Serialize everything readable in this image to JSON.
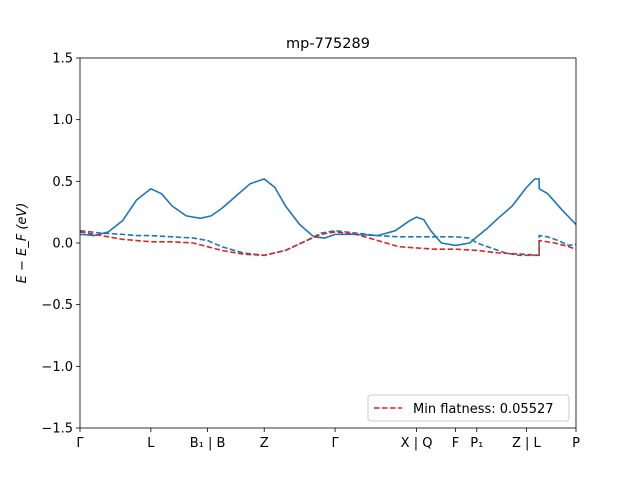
{
  "chart_data": {
    "type": "line",
    "title": "mp-775289",
    "ylabel": "E − E_F (eV)",
    "ylim": [
      -1.5,
      1.5
    ],
    "yticks": [
      1.5,
      1.0,
      0.5,
      0.0,
      -0.5,
      -1.0,
      -1.5
    ],
    "ytick_labels": [
      "1.5",
      "1.0",
      "0.5",
      "0.0",
      "−0.5",
      "−1.0",
      "−1.5"
    ],
    "xlim": [
      0,
      7.0
    ],
    "xticks": [
      {
        "x": 0.0,
        "label": "Γ"
      },
      {
        "x": 1.0,
        "label": "L"
      },
      {
        "x": 1.8,
        "label": "B₁ | B"
      },
      {
        "x": 2.6,
        "label": "Z"
      },
      {
        "x": 3.6,
        "label": "Γ"
      },
      {
        "x": 4.75,
        "label": "X | Q"
      },
      {
        "x": 5.3,
        "label": "F"
      },
      {
        "x": 5.6,
        "label": "P₁"
      },
      {
        "x": 6.3,
        "label": "Z | L"
      },
      {
        "x": 7.0,
        "label": "P"
      }
    ],
    "colors": {
      "band": "#1f77b4",
      "flat": "#d62728"
    },
    "series": [
      {
        "style": "solid",
        "color": "#1f77b4",
        "points": [
          [
            0,
            0.07
          ],
          [
            0.2,
            0.06
          ],
          [
            0.4,
            0.09
          ],
          [
            0.6,
            0.18
          ],
          [
            0.8,
            0.35
          ],
          [
            1.0,
            0.44
          ],
          [
            1.15,
            0.4
          ],
          [
            1.3,
            0.3
          ],
          [
            1.5,
            0.22
          ],
          [
            1.7,
            0.2
          ],
          [
            1.85,
            0.22
          ],
          [
            2.0,
            0.28
          ],
          [
            2.2,
            0.38
          ],
          [
            2.4,
            0.48
          ],
          [
            2.6,
            0.52
          ],
          [
            2.75,
            0.45
          ],
          [
            2.9,
            0.3
          ],
          [
            3.1,
            0.15
          ],
          [
            3.3,
            0.05
          ],
          [
            3.45,
            0.04
          ],
          [
            3.6,
            0.07
          ],
          [
            3.9,
            0.07
          ],
          [
            4.2,
            0.06
          ],
          [
            4.45,
            0.1
          ],
          [
            4.65,
            0.18
          ],
          [
            4.75,
            0.21
          ],
          [
            4.85,
            0.19
          ],
          [
            4.95,
            0.1
          ],
          [
            5.1,
            0.0
          ],
          [
            5.3,
            -0.02
          ],
          [
            5.5,
            0.0
          ],
          [
            5.6,
            0.05
          ],
          [
            5.75,
            0.12
          ],
          [
            5.9,
            0.2
          ],
          [
            6.1,
            0.3
          ],
          [
            6.3,
            0.45
          ],
          [
            6.42,
            0.52
          ],
          [
            6.48,
            0.52
          ],
          [
            6.48,
            0.44
          ],
          [
            6.6,
            0.4
          ],
          [
            6.8,
            0.27
          ],
          [
            7.0,
            0.15
          ]
        ]
      },
      {
        "style": "dashed",
        "color": "#1f77b4",
        "points": [
          [
            0,
            0.1
          ],
          [
            0.3,
            0.08
          ],
          [
            0.6,
            0.07
          ],
          [
            0.8,
            0.06
          ],
          [
            1.0,
            0.06
          ],
          [
            1.3,
            0.05
          ],
          [
            1.6,
            0.04
          ],
          [
            1.8,
            0.02
          ],
          [
            2.0,
            -0.03
          ],
          [
            2.3,
            -0.08
          ],
          [
            2.6,
            -0.1
          ],
          [
            2.9,
            -0.06
          ],
          [
            3.2,
            0.02
          ],
          [
            3.4,
            0.08
          ],
          [
            3.6,
            0.1
          ],
          [
            3.9,
            0.08
          ],
          [
            4.2,
            0.06
          ],
          [
            4.5,
            0.05
          ],
          [
            4.75,
            0.05
          ],
          [
            5.0,
            0.05
          ],
          [
            5.3,
            0.05
          ],
          [
            5.5,
            0.04
          ],
          [
            5.6,
            0.0
          ],
          [
            5.8,
            -0.04
          ],
          [
            6.0,
            -0.08
          ],
          [
            6.2,
            -0.1
          ],
          [
            6.48,
            -0.1
          ],
          [
            6.48,
            0.06
          ],
          [
            6.6,
            0.05
          ],
          [
            6.75,
            0.02
          ],
          [
            6.9,
            -0.02
          ],
          [
            7.0,
            -0.01
          ]
        ]
      },
      {
        "style": "dashed",
        "color": "#d62728",
        "name": "Min flatness: 0.05527",
        "points": [
          [
            0,
            0.09
          ],
          [
            0.3,
            0.06
          ],
          [
            0.6,
            0.03
          ],
          [
            1.0,
            0.01
          ],
          [
            1.3,
            0.01
          ],
          [
            1.6,
            0.0
          ],
          [
            1.8,
            -0.03
          ],
          [
            2.0,
            -0.06
          ],
          [
            2.3,
            -0.09
          ],
          [
            2.6,
            -0.1
          ],
          [
            2.9,
            -0.06
          ],
          [
            3.2,
            0.02
          ],
          [
            3.4,
            0.07
          ],
          [
            3.6,
            0.09
          ],
          [
            3.9,
            0.07
          ],
          [
            4.2,
            0.02
          ],
          [
            4.5,
            -0.03
          ],
          [
            4.75,
            -0.04
          ],
          [
            5.0,
            -0.05
          ],
          [
            5.3,
            -0.05
          ],
          [
            5.6,
            -0.06
          ],
          [
            5.9,
            -0.08
          ],
          [
            6.2,
            -0.09
          ],
          [
            6.48,
            -0.1
          ],
          [
            6.48,
            0.02
          ],
          [
            6.7,
            0.0
          ],
          [
            6.9,
            -0.03
          ],
          [
            7.0,
            -0.05
          ]
        ]
      }
    ],
    "legend": {
      "position": "lower-right",
      "label": "Min flatness: 0.05527"
    }
  }
}
